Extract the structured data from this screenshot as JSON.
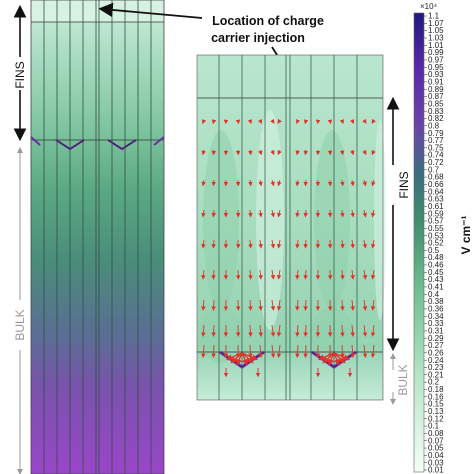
{
  "annotation": {
    "line1": "Location of charge",
    "line2": "carrier injection"
  },
  "left_panel": {
    "fins_label": "FINS",
    "bulk_label": "BULK"
  },
  "right_panel": {
    "fins_label": "FINS",
    "bulk_label": "BULK"
  },
  "colorbar": {
    "exponent": "×10⁴",
    "unit": "V cm⁻¹",
    "min": 0.01,
    "max": 1.1,
    "ticks": [
      "1.1",
      "1.07",
      "1.05",
      "1.03",
      "1.01",
      "0.99",
      "0.97",
      "0.95",
      "0.93",
      "0.91",
      "0.89",
      "0.87",
      "0.85",
      "0.83",
      "0.82",
      "0.8",
      "0.79",
      "0.77",
      "0.75",
      "0.74",
      "0.72",
      "0.7",
      "0.68",
      "0.66",
      "0.64",
      "0.63",
      "0.61",
      "0.59",
      "0.57",
      "0.55",
      "0.53",
      "0.52",
      "0.5",
      "0.48",
      "0.46",
      "0.45",
      "0.43",
      "0.41",
      "0.4",
      "0.38",
      "0.36",
      "0.34",
      "0.33",
      "0.31",
      "0.29",
      "0.27",
      "0.26",
      "0.24",
      "0.23",
      "0.21",
      "0.2",
      "0.18",
      "0.16",
      "0.15",
      "0.13",
      "0.12",
      "0.1",
      "0.08",
      "0.07",
      "0.05",
      "0.04",
      "0.03",
      "0.01"
    ],
    "colors": {
      "low": "#f1fff5",
      "mid_low": "#a8ddbb",
      "mid": "#4c9e74",
      "mid_high": "#3a6e7c",
      "high_a": "#7e3fb0",
      "high_b": "#2a1a8a"
    }
  },
  "colors": {
    "arrow": "#e0322a",
    "grid_line": "#333333",
    "axis_gray": "#9a9a9a"
  }
}
